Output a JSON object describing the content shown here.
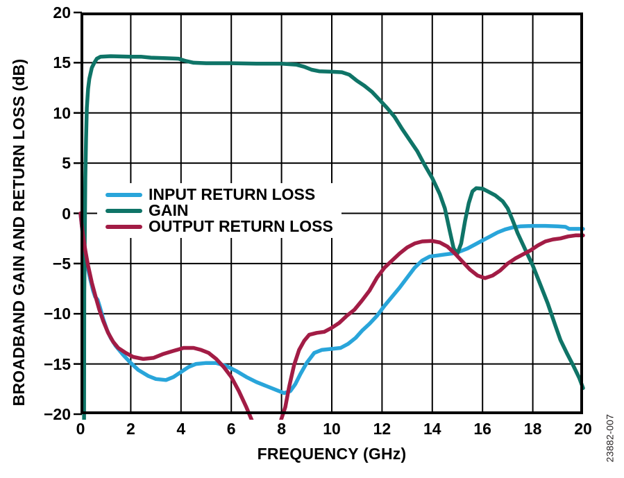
{
  "figure": {
    "watermark": "23882-007"
  },
  "chart_data": {
    "type": "line",
    "title": "",
    "xlabel": "FREQUENCY (GHz)",
    "ylabel": "BROADBAND GAIN AND RETURN LOSS (dB)",
    "xlim": [
      0,
      20
    ],
    "ylim": [
      -20,
      20
    ],
    "grid": true,
    "legend_position": "inside-middle-left",
    "x_ticks": {
      "values": [
        0,
        2,
        4,
        6,
        8,
        10,
        12,
        14,
        16,
        18,
        20
      ],
      "labels": [
        "0",
        "2",
        "4",
        "6",
        "8",
        "10",
        "12",
        "14",
        "16",
        "18",
        "20"
      ]
    },
    "y_ticks": {
      "values": [
        20,
        15,
        10,
        5,
        0,
        -5,
        -10,
        -15,
        -20
      ],
      "labels": [
        "20",
        "15",
        "10",
        "5",
        "0",
        "−5",
        "−10",
        "−15",
        "−20"
      ]
    },
    "colors": {
      "input_return_loss": "#29A5DA",
      "gain": "#0F7467",
      "output_return_loss": "#A21C45",
      "grid": "#000000",
      "text": "#000000"
    },
    "series": [
      {
        "name": "INPUT RETURN LOSS",
        "color": "#29A5DA",
        "points": [
          [
            0,
            -0.1
          ],
          [
            0.05,
            -1.2
          ],
          [
            0.1,
            -2.4
          ],
          [
            0.18,
            -3.9
          ],
          [
            0.28,
            -5.3
          ],
          [
            0.4,
            -6.7
          ],
          [
            0.5,
            -7.7
          ],
          [
            0.58,
            -8.3
          ],
          [
            0.68,
            -8.6
          ],
          [
            0.78,
            -9.4
          ],
          [
            0.9,
            -10.5
          ],
          [
            1.05,
            -11.6
          ],
          [
            1.2,
            -12.4
          ],
          [
            1.4,
            -13.2
          ],
          [
            1.7,
            -14.1
          ],
          [
            2.0,
            -14.9
          ],
          [
            2.3,
            -15.6
          ],
          [
            2.7,
            -16.2
          ],
          [
            3.0,
            -16.5
          ],
          [
            3.4,
            -16.6
          ],
          [
            3.7,
            -16.3
          ],
          [
            4.0,
            -15.8
          ],
          [
            4.3,
            -15.3
          ],
          [
            4.6,
            -15.0
          ],
          [
            5.0,
            -14.9
          ],
          [
            5.4,
            -14.9
          ],
          [
            5.8,
            -15.2
          ],
          [
            6.2,
            -15.7
          ],
          [
            6.6,
            -16.3
          ],
          [
            7.0,
            -16.8
          ],
          [
            7.4,
            -17.2
          ],
          [
            7.8,
            -17.6
          ],
          [
            8.1,
            -17.9
          ],
          [
            8.35,
            -17.7
          ],
          [
            8.55,
            -17.0
          ],
          [
            8.75,
            -16.0
          ],
          [
            9.0,
            -14.9
          ],
          [
            9.3,
            -13.9
          ],
          [
            9.6,
            -13.6
          ],
          [
            10.0,
            -13.5
          ],
          [
            10.35,
            -13.4
          ],
          [
            10.65,
            -13.0
          ],
          [
            10.95,
            -12.4
          ],
          [
            11.2,
            -11.7
          ],
          [
            11.5,
            -11.0
          ],
          [
            11.8,
            -10.2
          ],
          [
            12.1,
            -9.2
          ],
          [
            12.4,
            -8.3
          ],
          [
            12.7,
            -7.4
          ],
          [
            13.0,
            -6.4
          ],
          [
            13.3,
            -5.4
          ],
          [
            13.6,
            -4.7
          ],
          [
            13.9,
            -4.3
          ],
          [
            14.2,
            -4.2
          ],
          [
            14.5,
            -4.1
          ],
          [
            14.8,
            -4.0
          ],
          [
            15.1,
            -3.8
          ],
          [
            15.4,
            -3.5
          ],
          [
            15.7,
            -3.1
          ],
          [
            16.0,
            -2.7
          ],
          [
            16.3,
            -2.3
          ],
          [
            16.6,
            -1.9
          ],
          [
            16.9,
            -1.6
          ],
          [
            17.2,
            -1.4
          ],
          [
            17.5,
            -1.3
          ],
          [
            18.0,
            -1.25
          ],
          [
            18.5,
            -1.25
          ],
          [
            19.0,
            -1.3
          ],
          [
            19.3,
            -1.35
          ],
          [
            19.45,
            -1.55
          ],
          [
            20,
            -1.55
          ]
        ]
      },
      {
        "name": "GAIN",
        "color": "#0F7467",
        "points": [
          [
            0.14,
            -21
          ],
          [
            0.15,
            -8
          ],
          [
            0.17,
            -2
          ],
          [
            0.19,
            3.5
          ],
          [
            0.22,
            7.5
          ],
          [
            0.25,
            10.5
          ],
          [
            0.3,
            12.4
          ],
          [
            0.35,
            13.4
          ],
          [
            0.45,
            14.5
          ],
          [
            0.55,
            15.0
          ],
          [
            0.65,
            15.4
          ],
          [
            0.8,
            15.6
          ],
          [
            1.2,
            15.65
          ],
          [
            2.0,
            15.6
          ],
          [
            2.4,
            15.6
          ],
          [
            2.8,
            15.5
          ],
          [
            3.4,
            15.45
          ],
          [
            3.9,
            15.4
          ],
          [
            4.15,
            15.2
          ],
          [
            4.5,
            15.0
          ],
          [
            5.0,
            14.95
          ],
          [
            6.0,
            14.95
          ],
          [
            7.0,
            14.9
          ],
          [
            8.0,
            14.9
          ],
          [
            8.6,
            14.8
          ],
          [
            8.9,
            14.6
          ],
          [
            9.2,
            14.3
          ],
          [
            9.5,
            14.15
          ],
          [
            10.0,
            14.1
          ],
          [
            10.4,
            14.05
          ],
          [
            10.7,
            13.8
          ],
          [
            11.0,
            13.2
          ],
          [
            11.3,
            12.7
          ],
          [
            11.6,
            12.1
          ],
          [
            11.9,
            11.3
          ],
          [
            12.2,
            10.5
          ],
          [
            12.5,
            9.6
          ],
          [
            12.8,
            8.4
          ],
          [
            13.1,
            7.3
          ],
          [
            13.4,
            6.2
          ],
          [
            13.7,
            4.8
          ],
          [
            14.0,
            3.5
          ],
          [
            14.3,
            1.9
          ],
          [
            14.5,
            0.5
          ],
          [
            14.7,
            -1.8
          ],
          [
            14.85,
            -3.5
          ],
          [
            15.0,
            -4.0
          ],
          [
            15.15,
            -3.0
          ],
          [
            15.3,
            -0.8
          ],
          [
            15.45,
            1.0
          ],
          [
            15.6,
            2.2
          ],
          [
            15.75,
            2.5
          ],
          [
            16.0,
            2.45
          ],
          [
            16.2,
            2.2
          ],
          [
            16.5,
            1.8
          ],
          [
            16.8,
            1.2
          ],
          [
            17.0,
            0.5
          ],
          [
            17.2,
            -0.7
          ],
          [
            17.4,
            -2.0
          ],
          [
            17.7,
            -3.6
          ],
          [
            18.0,
            -5.2
          ],
          [
            18.3,
            -7.1
          ],
          [
            18.6,
            -9.0
          ],
          [
            18.9,
            -11.2
          ],
          [
            19.1,
            -12.6
          ],
          [
            19.35,
            -13.9
          ],
          [
            19.6,
            -15.1
          ],
          [
            19.85,
            -16.4
          ],
          [
            20,
            -17.4
          ]
        ]
      },
      {
        "name": "OUTPUT RETURN LOSS",
        "color": "#A21C45",
        "points": [
          [
            0,
            0
          ],
          [
            0.05,
            -1.2
          ],
          [
            0.12,
            -2.5
          ],
          [
            0.2,
            -3.8
          ],
          [
            0.3,
            -5.2
          ],
          [
            0.45,
            -6.9
          ],
          [
            0.6,
            -8.3
          ],
          [
            0.75,
            -9.6
          ],
          [
            0.9,
            -10.7
          ],
          [
            1.1,
            -11.9
          ],
          [
            1.3,
            -12.8
          ],
          [
            1.5,
            -13.4
          ],
          [
            1.8,
            -13.9
          ],
          [
            2.1,
            -14.3
          ],
          [
            2.5,
            -14.5
          ],
          [
            2.9,
            -14.4
          ],
          [
            3.3,
            -14.0
          ],
          [
            3.7,
            -13.7
          ],
          [
            4.1,
            -13.4
          ],
          [
            4.5,
            -13.4
          ],
          [
            4.8,
            -13.6
          ],
          [
            5.1,
            -13.9
          ],
          [
            5.4,
            -14.5
          ],
          [
            5.7,
            -15.3
          ],
          [
            6.0,
            -16.3
          ],
          [
            6.3,
            -17.7
          ],
          [
            6.6,
            -19.3
          ],
          [
            6.85,
            -20.8
          ],
          [
            7.1,
            -21.8
          ],
          [
            7.6,
            -22.0
          ],
          [
            7.95,
            -20.8
          ],
          [
            8.15,
            -19.3
          ],
          [
            8.3,
            -17.3
          ],
          [
            8.5,
            -15.1
          ],
          [
            8.7,
            -13.6
          ],
          [
            8.9,
            -12.7
          ],
          [
            9.1,
            -12.1
          ],
          [
            9.4,
            -11.9
          ],
          [
            9.7,
            -11.8
          ],
          [
            10.0,
            -11.4
          ],
          [
            10.3,
            -10.9
          ],
          [
            10.6,
            -10.2
          ],
          [
            10.9,
            -9.6
          ],
          [
            11.2,
            -8.7
          ],
          [
            11.5,
            -7.7
          ],
          [
            11.8,
            -6.4
          ],
          [
            12.1,
            -5.4
          ],
          [
            12.4,
            -4.7
          ],
          [
            12.7,
            -4.0
          ],
          [
            13.0,
            -3.4
          ],
          [
            13.3,
            -3.0
          ],
          [
            13.6,
            -2.8
          ],
          [
            14.0,
            -2.75
          ],
          [
            14.3,
            -2.9
          ],
          [
            14.6,
            -3.3
          ],
          [
            14.9,
            -4.0
          ],
          [
            15.2,
            -4.8
          ],
          [
            15.5,
            -5.6
          ],
          [
            15.8,
            -6.2
          ],
          [
            16.1,
            -6.45
          ],
          [
            16.4,
            -6.2
          ],
          [
            16.7,
            -5.7
          ],
          [
            17.0,
            -5.0
          ],
          [
            17.3,
            -4.5
          ],
          [
            17.6,
            -4.1
          ],
          [
            17.9,
            -3.7
          ],
          [
            18.2,
            -3.2
          ],
          [
            18.5,
            -2.8
          ],
          [
            18.8,
            -2.6
          ],
          [
            19.1,
            -2.5
          ],
          [
            19.4,
            -2.3
          ],
          [
            19.7,
            -2.2
          ],
          [
            20,
            -2.2
          ]
        ]
      }
    ]
  }
}
